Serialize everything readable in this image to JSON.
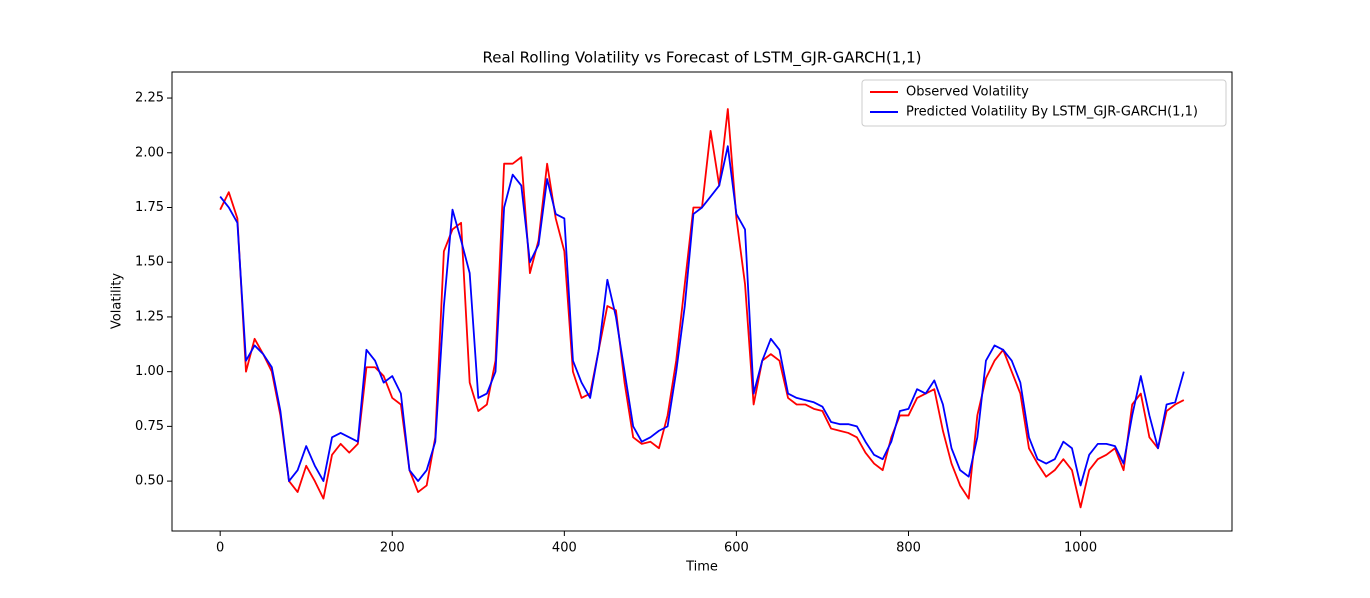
{
  "chart_data": {
    "type": "line",
    "title": "Real Rolling Volatility vs Forecast of LSTM_GJR-GARCH(1,1)",
    "x_label": "Time",
    "y_label": "Volatility",
    "x": [
      0,
      10,
      20,
      30,
      40,
      50,
      60,
      70,
      80,
      90,
      100,
      110,
      120,
      130,
      140,
      150,
      160,
      170,
      180,
      190,
      200,
      210,
      220,
      230,
      240,
      250,
      260,
      270,
      280,
      290,
      300,
      310,
      320,
      330,
      340,
      350,
      360,
      370,
      380,
      390,
      400,
      410,
      420,
      430,
      440,
      450,
      460,
      470,
      480,
      490,
      500,
      510,
      520,
      530,
      540,
      550,
      560,
      570,
      580,
      590,
      600,
      610,
      620,
      630,
      640,
      650,
      660,
      670,
      680,
      690,
      700,
      710,
      720,
      730,
      740,
      750,
      760,
      770,
      780,
      790,
      800,
      810,
      820,
      830,
      840,
      850,
      860,
      870,
      880,
      890,
      900,
      910,
      920,
      930,
      940,
      950,
      960,
      970,
      980,
      990,
      1000,
      1010,
      1020,
      1030,
      1040,
      1050,
      1060,
      1070,
      1080,
      1090,
      1100,
      1110,
      1120
    ],
    "series": [
      {
        "name": "Observed Volatility",
        "color": "#ff0000",
        "values": [
          1.74,
          1.82,
          1.7,
          1.0,
          1.15,
          1.08,
          1.0,
          0.8,
          0.5,
          0.45,
          0.57,
          0.5,
          0.42,
          0.62,
          0.67,
          0.63,
          0.67,
          1.02,
          1.02,
          0.98,
          0.88,
          0.85,
          0.55,
          0.45,
          0.48,
          0.7,
          1.55,
          1.65,
          1.68,
          0.95,
          0.82,
          0.85,
          1.05,
          1.95,
          1.95,
          1.98,
          1.45,
          1.6,
          1.95,
          1.7,
          1.55,
          1.0,
          0.88,
          0.9,
          1.1,
          1.3,
          1.28,
          0.95,
          0.7,
          0.67,
          0.68,
          0.65,
          0.8,
          1.05,
          1.4,
          1.75,
          1.75,
          2.1,
          1.85,
          2.2,
          1.7,
          1.4,
          0.85,
          1.05,
          1.08,
          1.05,
          0.88,
          0.85,
          0.85,
          0.83,
          0.82,
          0.74,
          0.73,
          0.72,
          0.7,
          0.63,
          0.58,
          0.55,
          0.7,
          0.8,
          0.8,
          0.88,
          0.9,
          0.92,
          0.73,
          0.58,
          0.48,
          0.42,
          0.8,
          0.97,
          1.05,
          1.1,
          1.0,
          0.9,
          0.65,
          0.58,
          0.52,
          0.55,
          0.6,
          0.55,
          0.38,
          0.55,
          0.6,
          0.62,
          0.65,
          0.55,
          0.85,
          0.9,
          0.7,
          0.65,
          0.82,
          0.85,
          0.87
        ]
      },
      {
        "name": "Predicted Volatility By LSTM_GJR-GARCH(1,1)",
        "color": "#0000ff",
        "values": [
          1.8,
          1.75,
          1.68,
          1.05,
          1.12,
          1.08,
          1.02,
          0.82,
          0.5,
          0.55,
          0.66,
          0.57,
          0.5,
          0.7,
          0.72,
          0.7,
          0.68,
          1.1,
          1.05,
          0.95,
          0.98,
          0.9,
          0.55,
          0.5,
          0.55,
          0.68,
          1.3,
          1.74,
          1.6,
          1.45,
          0.88,
          0.9,
          1.0,
          1.75,
          1.9,
          1.85,
          1.5,
          1.58,
          1.88,
          1.72,
          1.7,
          1.05,
          0.95,
          0.88,
          1.1,
          1.42,
          1.25,
          1.0,
          0.75,
          0.68,
          0.7,
          0.73,
          0.75,
          1.0,
          1.3,
          1.72,
          1.75,
          1.8,
          1.85,
          2.03,
          1.72,
          1.65,
          0.9,
          1.05,
          1.15,
          1.1,
          0.9,
          0.88,
          0.87,
          0.86,
          0.84,
          0.77,
          0.76,
          0.76,
          0.75,
          0.68,
          0.62,
          0.6,
          0.68,
          0.82,
          0.83,
          0.92,
          0.9,
          0.96,
          0.85,
          0.65,
          0.55,
          0.52,
          0.7,
          1.05,
          1.12,
          1.1,
          1.05,
          0.95,
          0.7,
          0.6,
          0.58,
          0.6,
          0.68,
          0.65,
          0.48,
          0.62,
          0.67,
          0.67,
          0.66,
          0.58,
          0.8,
          0.98,
          0.8,
          0.65,
          0.85,
          0.86,
          1.0
        ]
      }
    ],
    "xlim": [
      -56,
      1176
    ],
    "ylim": [
      0.272,
      2.369
    ],
    "xticks": [
      0,
      200,
      400,
      600,
      800,
      1000
    ],
    "yticks": [
      {
        "value": 0.5,
        "label": "0.50"
      },
      0.75,
      {
        "value": 1.0,
        "label": "1.00"
      },
      1.25,
      {
        "value": 1.5,
        "label": "1.50"
      },
      1.75,
      {
        "value": 2.0,
        "label": "2.00"
      },
      2.25
    ],
    "legend": "upper right"
  }
}
